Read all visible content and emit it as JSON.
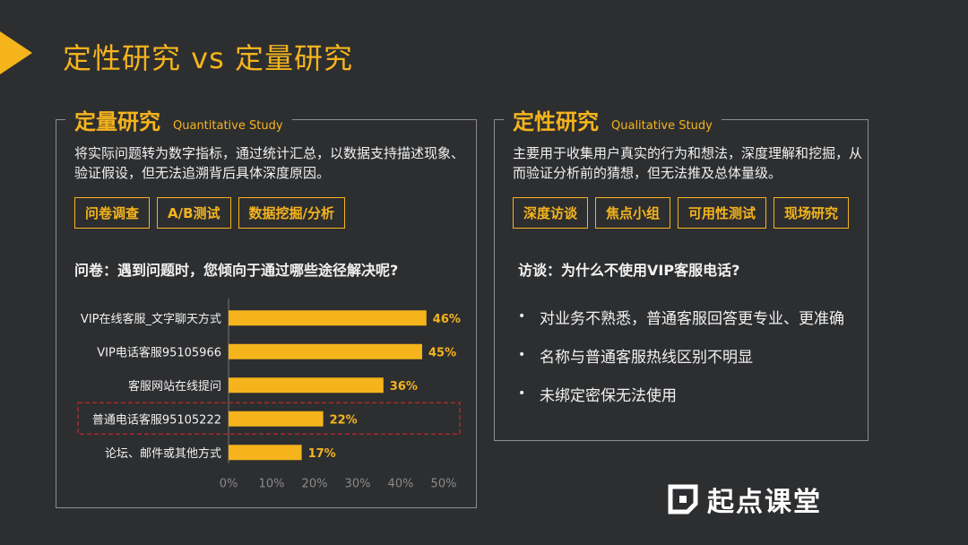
{
  "title": "定性研究 vs 定量研究",
  "left": {
    "heading_cn": "定量研究",
    "heading_en": "Quantitative Study",
    "description": "将实际问题转为数字指标，通过统计汇总，以数据支持描述现象、验证假设，但无法追溯背后具体深度原因。",
    "tags": [
      "问卷调查",
      "A/B测试",
      "数据挖掘/分析"
    ],
    "question": "问卷：遇到问题时，您倾向于通过哪些途径解决呢?"
  },
  "right": {
    "heading_cn": "定性研究",
    "heading_en": "Qualitative Study",
    "description": "主要用于收集用户真实的行为和想法，深度理解和挖掘，从而验证分析前的猜想，但无法推及总体量级。",
    "tags": [
      "深度访谈",
      "焦点小组",
      "可用性测试",
      "现场研究"
    ],
    "question": "访谈：为什么不使用VIP客服电话?",
    "bullets": [
      "对业务不熟悉，普通客服回答更专业、更准确",
      "名称与普通客服热线区别不明显",
      "未绑定密保无法使用"
    ]
  },
  "chart_data": {
    "type": "bar",
    "orientation": "horizontal",
    "categories": [
      "VIP在线客服_文字聊天方式",
      "VIP电话客服95105966",
      "客服网站在线提问",
      "普通电话客服95105222",
      "论坛、邮件或其他方式"
    ],
    "values": [
      46,
      45,
      36,
      22,
      17
    ],
    "value_labels": [
      "46%",
      "45%",
      "36%",
      "22%",
      "17%"
    ],
    "xticks": [
      "0%",
      "10%",
      "20%",
      "30%",
      "40%",
      "50%"
    ],
    "xlim": [
      0,
      50
    ],
    "highlighted_category": "普通电话客服95105222",
    "bar_color": "#f5b41c",
    "highlight_color": "#c0282c"
  },
  "logo": {
    "text": "起点课堂"
  }
}
